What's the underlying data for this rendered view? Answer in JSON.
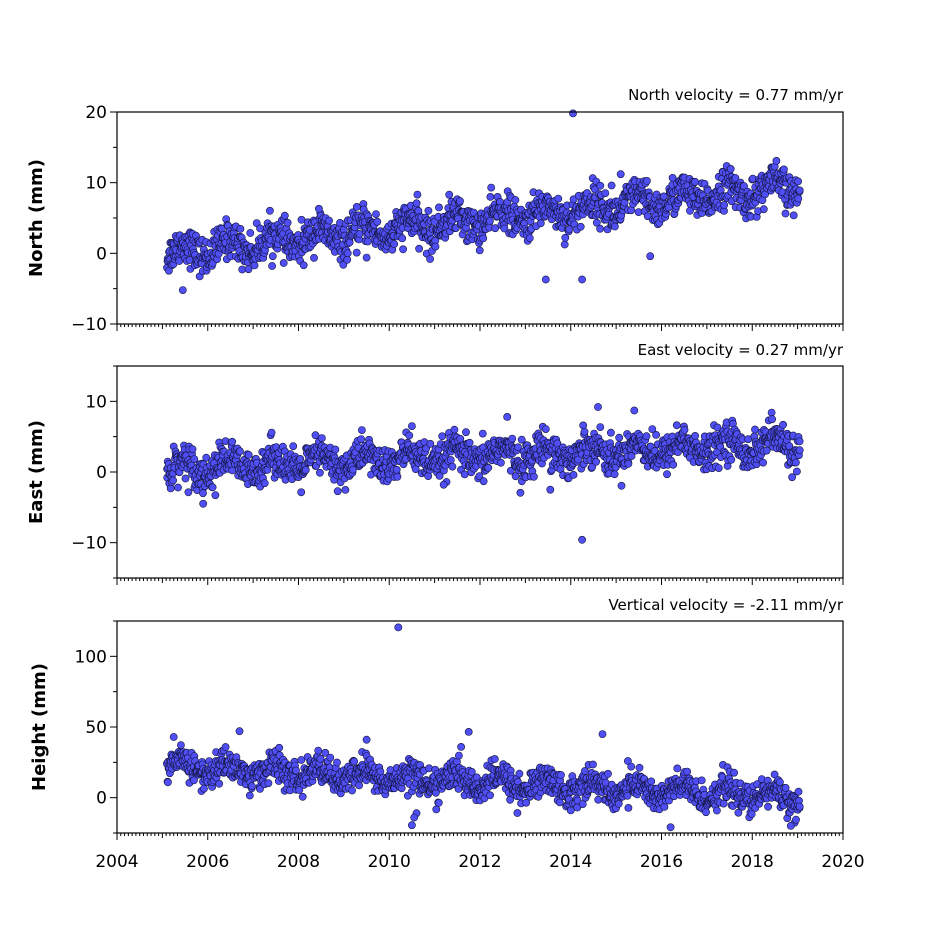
{
  "chart_data": [
    {
      "type": "scatter",
      "title": "North velocity = 0.77 mm/yr",
      "xlabel": "",
      "ylabel": "North (mm)",
      "xlim": [
        2004,
        2020
      ],
      "ylim": [
        -10,
        20
      ],
      "xticks": [],
      "yticks": [
        "−10",
        "0",
        "10",
        "20"
      ],
      "ytick_values": [
        -10,
        0,
        10,
        20
      ],
      "velocity_mm_per_yr": 0.77,
      "data_span": [
        2005.1,
        2019.05
      ],
      "level_at_start_mm": 0,
      "level_at_end_mm": 9.5,
      "scatter_mm": 1.3,
      "marker_color": "#4f4ff5",
      "edge_color": "#14143c",
      "outliers": [
        [
          2014.05,
          19.8
        ],
        [
          2013.45,
          -3.7
        ],
        [
          2014.25,
          -3.7
        ],
        [
          2005.45,
          -5.2
        ],
        [
          2008.45,
          6.3
        ],
        [
          2014.9,
          9.6
        ],
        [
          2015.1,
          11.2
        ],
        [
          2015.75,
          -0.4
        ],
        [
          2010.9,
          -0.8
        ],
        [
          2009.5,
          -0.6
        ]
      ]
    },
    {
      "type": "scatter",
      "title": "East velocity = 0.27 mm/yr",
      "xlabel": "",
      "ylabel": "East (mm)",
      "xlim": [
        2004,
        2020
      ],
      "ylim": [
        -15,
        15
      ],
      "xticks": [],
      "yticks": [
        "−10",
        "0",
        "10"
      ],
      "ytick_values": [
        -10,
        0,
        10
      ],
      "velocity_mm_per_yr": 0.27,
      "data_span": [
        2005.1,
        2019.05
      ],
      "level_at_start_mm": 0.5,
      "level_at_end_mm": 4.0,
      "scatter_mm": 1.3,
      "marker_color": "#4f4ff5",
      "edge_color": "#14143c",
      "outliers": [
        [
          2014.25,
          -9.6
        ],
        [
          2014.6,
          9.2
        ],
        [
          2005.9,
          -4.5
        ],
        [
          2013.55,
          -2.5
        ],
        [
          2012.6,
          7.8
        ],
        [
          2015.4,
          8.7
        ],
        [
          2010.5,
          6.5
        ],
        [
          2011.2,
          -1.8
        ]
      ]
    },
    {
      "type": "scatter",
      "title": "Vertical velocity = -2.11 mm/yr",
      "xlabel": "",
      "ylabel": "Height (mm)",
      "xlim": [
        2004,
        2020
      ],
      "ylim": [
        -25,
        125
      ],
      "xticks": [
        "2004",
        "2006",
        "2008",
        "2010",
        "2012",
        "2014",
        "2016",
        "2018",
        "2020"
      ],
      "xtick_values": [
        2004,
        2006,
        2008,
        2010,
        2012,
        2014,
        2016,
        2018,
        2020
      ],
      "yticks": [
        "0",
        "50",
        "100"
      ],
      "ytick_values": [
        0,
        50,
        100
      ],
      "velocity_mm_per_yr": -2.11,
      "data_span": [
        2005.1,
        2019.05
      ],
      "level_at_start_mm": 22,
      "level_at_end_mm": 0,
      "scatter_mm": 5.5,
      "marker_color": "#4f4ff5",
      "edge_color": "#14143c",
      "outliers": [
        [
          2010.2,
          120.5
        ],
        [
          2010.5,
          -19.5
        ],
        [
          2010.6,
          -11
        ],
        [
          2016.2,
          -21
        ],
        [
          2018.85,
          -20
        ],
        [
          2011.75,
          46.5
        ],
        [
          2014.7,
          45
        ],
        [
          2009.5,
          41
        ],
        [
          2006.7,
          47
        ],
        [
          2014.0,
          -9
        ],
        [
          2010.55,
          -14
        ]
      ]
    }
  ]
}
